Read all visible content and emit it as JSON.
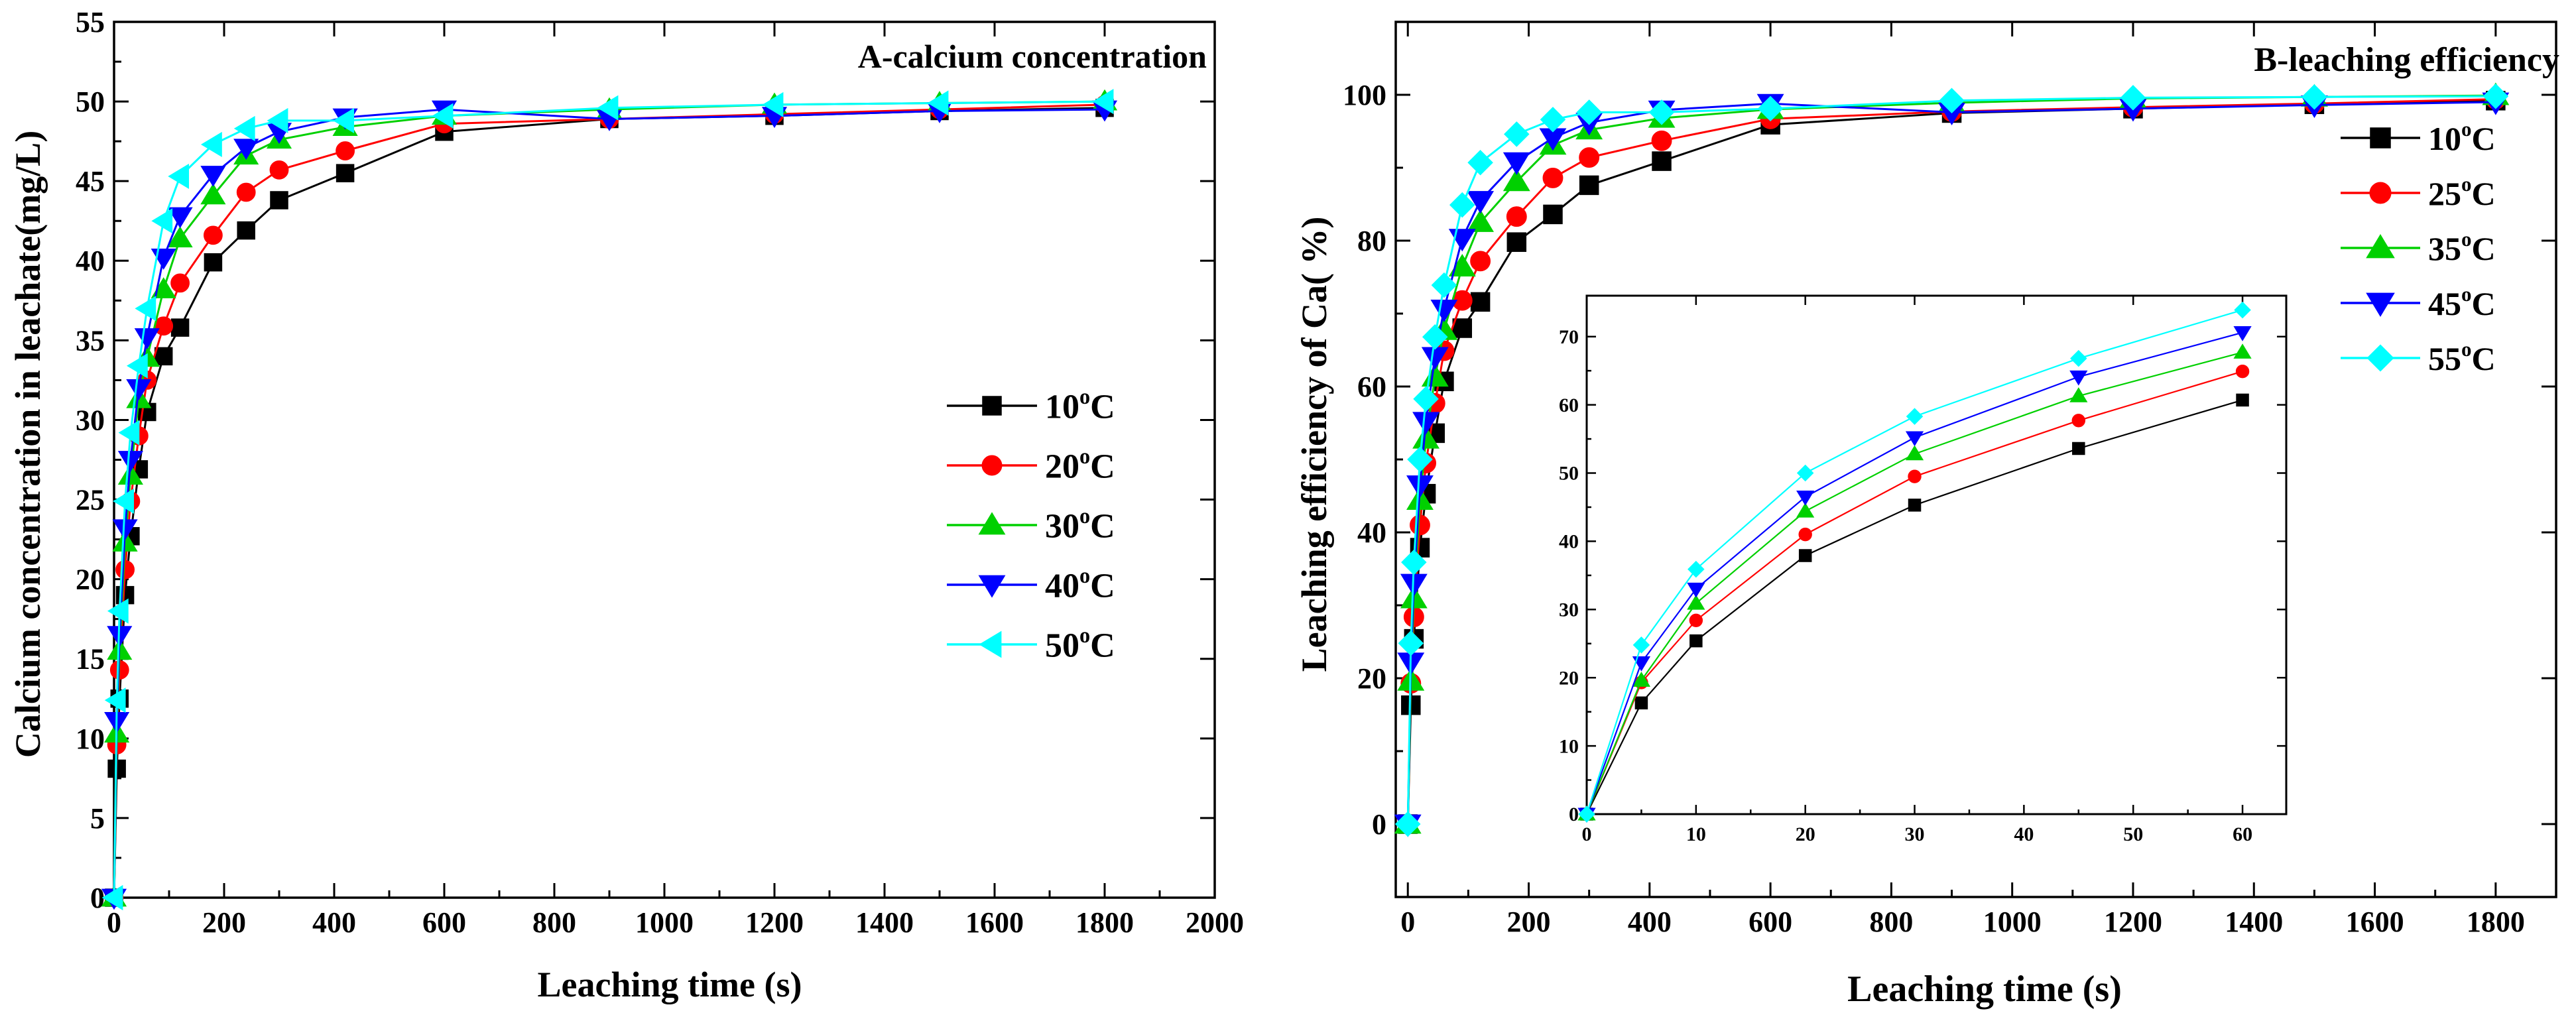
{
  "chart_data": [
    {
      "id": "A",
      "type": "line",
      "title": "A-calcium concentration",
      "xlabel": "Leaching time (s)",
      "ylabel": "Calcium concentration in leachate(mg/L)",
      "xlim": [
        0,
        2000
      ],
      "ylim": [
        0,
        55
      ],
      "xticks": [
        0,
        200,
        400,
        600,
        800,
        1000,
        1200,
        1400,
        1600,
        1800,
        2000
      ],
      "yticks": [
        0,
        5,
        10,
        15,
        20,
        25,
        30,
        35,
        40,
        45,
        50,
        55
      ],
      "legend_position": "center-right",
      "series": [
        {
          "name": "10",
          "unit": "°C",
          "color": "#000000",
          "marker": "square",
          "x": [
            0,
            5,
            10,
            20,
            30,
            45,
            60,
            90,
            120,
            180,
            240,
            300,
            420,
            600,
            900,
            1200,
            1500,
            1800
          ],
          "y": [
            0,
            8.1,
            12.5,
            19.0,
            22.7,
            26.9,
            30.5,
            34.0,
            35.8,
            39.9,
            41.9,
            43.8,
            45.5,
            48.1,
            48.9,
            49.1,
            49.4,
            49.6
          ]
        },
        {
          "name": "20",
          "unit": "°C",
          "color": "#ff0000",
          "marker": "circle",
          "x": [
            0,
            5,
            10,
            20,
            30,
            45,
            60,
            90,
            120,
            180,
            240,
            300,
            420,
            600,
            900,
            1200,
            1500,
            1800
          ],
          "y": [
            0,
            9.6,
            14.3,
            20.6,
            24.9,
            29.0,
            32.5,
            35.9,
            38.6,
            41.6,
            44.3,
            45.7,
            46.9,
            48.6,
            48.9,
            49.2,
            49.5,
            49.8
          ]
        },
        {
          "name": "30",
          "unit": "°C",
          "color": "#00d000",
          "marker": "triangle-up",
          "x": [
            0,
            5,
            10,
            20,
            30,
            45,
            60,
            90,
            120,
            180,
            240,
            300,
            420,
            600,
            900,
            1200,
            1500,
            1800
          ],
          "y": [
            0,
            10.3,
            15.5,
            22.3,
            26.5,
            31.3,
            33.9,
            38.2,
            41.4,
            44.1,
            46.6,
            47.6,
            48.4,
            49.1,
            49.5,
            49.8,
            49.9,
            50.0
          ]
        },
        {
          "name": "40",
          "unit": "°C",
          "color": "#0000ff",
          "marker": "triangle-down",
          "x": [
            0,
            5,
            10,
            20,
            30,
            45,
            60,
            90,
            120,
            180,
            240,
            300,
            420,
            600,
            900,
            1200,
            1500,
            1800
          ],
          "y": [
            0,
            11.1,
            16.5,
            23.2,
            27.5,
            32.0,
            35.2,
            40.2,
            42.8,
            45.4,
            47.1,
            48.1,
            49.0,
            49.5,
            48.9,
            49.1,
            49.4,
            49.5
          ]
        },
        {
          "name": "50",
          "unit": "°C",
          "color": "#00ffff",
          "marker": "triangle-left",
          "x": [
            0,
            5,
            10,
            20,
            30,
            45,
            60,
            90,
            120,
            180,
            240,
            300,
            420,
            600,
            900,
            1200,
            1500,
            1800
          ],
          "y": [
            0,
            12.4,
            18.0,
            24.9,
            29.2,
            33.4,
            37.0,
            42.5,
            45.3,
            47.3,
            48.3,
            48.8,
            48.8,
            49.1,
            49.6,
            49.8,
            49.9,
            50.0
          ]
        }
      ]
    },
    {
      "id": "B",
      "type": "line",
      "title": "B-leaching efficiency",
      "xlabel": "Leaching time (s)",
      "ylabel": "Leaching efficiency of Ca(    %)",
      "xlim": [
        -20,
        1900
      ],
      "ylim": [
        -10,
        110
      ],
      "xticks": [
        0,
        200,
        400,
        600,
        800,
        1000,
        1200,
        1400,
        1600,
        1800
      ],
      "yticks": [
        0,
        20,
        40,
        60,
        80,
        100
      ],
      "legend_position": "top-right",
      "series": [
        {
          "name": "10",
          "unit": "°C",
          "color": "#000000",
          "marker": "square",
          "x": [
            0,
            5,
            10,
            20,
            30,
            45,
            60,
            90,
            120,
            180,
            240,
            300,
            420,
            600,
            900,
            1200,
            1500,
            1800
          ],
          "y": [
            0,
            16.3,
            25.4,
            37.9,
            45.3,
            53.6,
            60.7,
            68.0,
            71.6,
            79.8,
            83.6,
            87.6,
            90.9,
            95.9,
            97.5,
            98.1,
            98.7,
            99.2
          ]
        },
        {
          "name": "25",
          "unit": "°C",
          "color": "#ff0000",
          "marker": "circle",
          "x": [
            0,
            5,
            10,
            20,
            30,
            45,
            60,
            90,
            120,
            180,
            240,
            300,
            420,
            600,
            900,
            1200,
            1500,
            1800
          ],
          "y": [
            0,
            19.3,
            28.4,
            41.0,
            49.5,
            57.7,
            64.9,
            71.8,
            77.2,
            83.3,
            88.6,
            91.4,
            93.7,
            96.7,
            97.7,
            98.3,
            98.8,
            99.4
          ]
        },
        {
          "name": "35",
          "unit": "°C",
          "color": "#00d000",
          "marker": "triangle-up",
          "x": [
            0,
            5,
            10,
            20,
            30,
            45,
            60,
            90,
            120,
            180,
            240,
            300,
            420,
            600,
            900,
            1200,
            1500,
            1800
          ],
          "y": [
            0,
            19.6,
            30.9,
            44.4,
            52.8,
            61.3,
            67.7,
            76.4,
            82.5,
            88.1,
            93.1,
            95.2,
            96.8,
            98.0,
            98.9,
            99.5,
            99.7,
            99.9
          ]
        },
        {
          "name": "45",
          "unit": "°C",
          "color": "#0000ff",
          "marker": "triangle-down",
          "x": [
            0,
            5,
            10,
            20,
            30,
            45,
            60,
            90,
            120,
            180,
            240,
            300,
            420,
            600,
            900,
            1200,
            1500,
            1800
          ],
          "y": [
            0,
            22.2,
            33.0,
            46.5,
            55.2,
            64.1,
            70.6,
            80.3,
            85.5,
            90.8,
            94.1,
            96.2,
            97.9,
            98.8,
            97.6,
            98.1,
            98.6,
            99.0
          ]
        },
        {
          "name": "55",
          "unit": "°C",
          "color": "#00ffff",
          "marker": "diamond",
          "x": [
            0,
            5,
            10,
            20,
            30,
            45,
            60,
            90,
            120,
            180,
            240,
            300,
            420,
            600,
            900,
            1200,
            1500,
            1800
          ],
          "y": [
            0,
            24.8,
            35.9,
            50.0,
            58.3,
            66.8,
            73.9,
            84.9,
            90.7,
            94.6,
            96.6,
            97.6,
            97.6,
            98.1,
            99.2,
            99.6,
            99.7,
            99.8
          ]
        }
      ],
      "inset": {
        "type": "line",
        "xlim": [
          0,
          64
        ],
        "ylim": [
          0,
          76
        ],
        "xticks": [
          0,
          10,
          20,
          30,
          40,
          50,
          60
        ],
        "yticks": [
          0,
          10,
          20,
          30,
          40,
          50,
          60,
          70
        ],
        "series": [
          {
            "name": "10",
            "color": "#000000",
            "marker": "square",
            "x": [
              0,
              5,
              10,
              20,
              30,
              45,
              60
            ],
            "y": [
              0,
              16.3,
              25.4,
              37.9,
              45.3,
              53.6,
              60.7
            ]
          },
          {
            "name": "25",
            "color": "#ff0000",
            "marker": "circle",
            "x": [
              0,
              5,
              10,
              20,
              30,
              45,
              60
            ],
            "y": [
              0,
              19.3,
              28.4,
              41.0,
              49.5,
              57.7,
              64.9
            ]
          },
          {
            "name": "35",
            "color": "#00d000",
            "marker": "triangle-up",
            "x": [
              0,
              5,
              10,
              20,
              30,
              45,
              60
            ],
            "y": [
              0,
              19.6,
              30.9,
              44.4,
              52.8,
              61.3,
              67.7
            ]
          },
          {
            "name": "45",
            "color": "#0000ff",
            "marker": "triangle-down",
            "x": [
              0,
              5,
              10,
              20,
              30,
              45,
              60
            ],
            "y": [
              0,
              22.2,
              33.0,
              46.5,
              55.2,
              64.1,
              70.6
            ]
          },
          {
            "name": "55",
            "color": "#00ffff",
            "marker": "diamond",
            "x": [
              0,
              5,
              10,
              20,
              30,
              45,
              60
            ],
            "y": [
              0,
              24.8,
              35.9,
              50.0,
              58.3,
              66.8,
              73.9
            ]
          }
        ]
      }
    }
  ]
}
